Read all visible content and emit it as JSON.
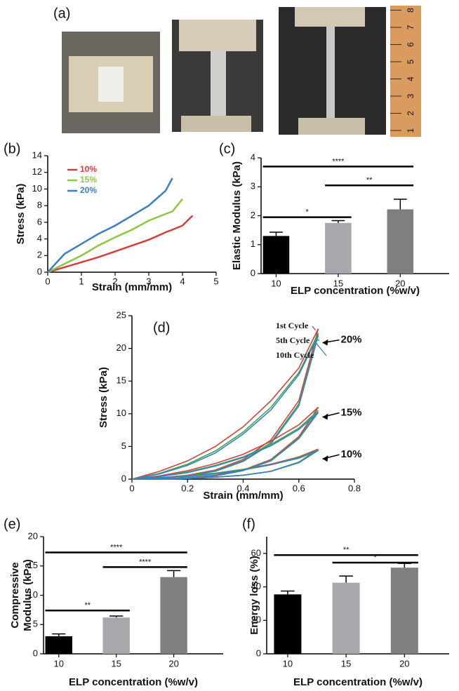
{
  "panel_a": {
    "label": "(a)",
    "ruler_labels": [
      "1",
      "2",
      "3",
      "4",
      "5",
      "6",
      "7",
      "8"
    ]
  },
  "chart_data": [
    {
      "type": "line",
      "panel_label": "(b)",
      "x_label": "Strain (mm/mm)",
      "y_label": "Stress (kPa)",
      "x": [
        0,
        0.5,
        1,
        1.5,
        2,
        2.5,
        3,
        3.5,
        3.7,
        4,
        4.3
      ],
      "series": [
        {
          "name": "10%",
          "color": "#d33f3a",
          "values": [
            0,
            0.6,
            1.2,
            1.8,
            2.5,
            3.2,
            3.9,
            4.8,
            5.1,
            5.6,
            6.8
          ]
        },
        {
          "name": "15%",
          "color": "#8dc63f",
          "values": [
            0,
            1.0,
            2.0,
            3.2,
            4.2,
            5.1,
            6.2,
            7.0,
            7.3,
            8.8,
            null
          ]
        },
        {
          "name": "20%",
          "color": "#3b7fc0",
          "values": [
            0,
            2.2,
            3.4,
            4.6,
            5.6,
            6.8,
            8.0,
            9.8,
            11.3,
            null,
            null
          ]
        }
      ],
      "xlim": [
        0,
        5
      ],
      "xticks": [
        0,
        1,
        2,
        3,
        4,
        5
      ],
      "ylim": [
        0,
        14
      ],
      "yticks": [
        0,
        2,
        4,
        6,
        8,
        10,
        12,
        14
      ],
      "legend": "upper left"
    },
    {
      "type": "bar",
      "panel_label": "(c)",
      "x_label": "ELP concentration (%w/v)",
      "y_label": [
        "Elastic Modulus (kPa)"
      ],
      "categories": [
        "10",
        "15",
        "20"
      ],
      "values": [
        1.3,
        1.75,
        2.22
      ],
      "errors": [
        0.13,
        0.08,
        0.35
      ],
      "colors": [
        "#000000",
        "#a7a7ac",
        "#7f7f7f"
      ],
      "ylim": [
        0,
        4
      ],
      "yticks": [
        0,
        1,
        2,
        3,
        4
      ],
      "significance": [
        {
          "from": "10",
          "to": "20",
          "y": 3.7,
          "label": "****"
        },
        {
          "from": "15",
          "to": "20",
          "y": 3.05,
          "label": "**"
        },
        {
          "from": "10",
          "to": "15",
          "y": 1.95,
          "label": "*"
        }
      ]
    },
    {
      "type": "loop",
      "panel_label": "(d)",
      "x_label": "Strain (mm/mm)",
      "y_label": "Stress (kPa)",
      "x": [
        0,
        0.1,
        0.2,
        0.3,
        0.4,
        0.5,
        0.6,
        0.67,
        0.6,
        0.5,
        0.4,
        0.3,
        0.2,
        0.1,
        0
      ],
      "cycles": [
        {
          "name": "1st Cycle",
          "color": "#d33f3a"
        },
        {
          "name": "5th Cycle",
          "color": "#3aa84f"
        },
        {
          "name": "10th Cycle",
          "color": "#3b7fc0"
        }
      ],
      "groups": [
        {
          "label": "20%",
          "values": [
            [
              0,
              1.2,
              2.8,
              5,
              8,
              12,
              17,
              23,
              12,
              6,
              3,
              1.4,
              0.6,
              0.2,
              0
            ],
            [
              0,
              0.9,
              2.3,
              4.3,
              7.2,
              11,
              16.3,
              22.3,
              11.5,
              5.6,
              2.8,
              1.3,
              0.5,
              0.2,
              0
            ],
            [
              0,
              0.8,
              2.1,
              4,
              6.9,
              10.6,
              16,
              22,
              11.2,
              5.4,
              2.7,
              1.2,
              0.5,
              0.1,
              0
            ]
          ]
        },
        {
          "label": "15%",
          "values": [
            [
              0,
              0.5,
              1.3,
              2.4,
              3.8,
              5.8,
              8.3,
              11,
              6.5,
              3,
              1.4,
              0.6,
              0.2,
              0,
              0
            ],
            [
              0,
              0.4,
              1.1,
              2.1,
              3.4,
              5.3,
              7.8,
              10.5,
              6.3,
              2.9,
              1.3,
              0.5,
              0.2,
              0,
              0
            ],
            [
              0,
              0.4,
              1,
              2,
              3.3,
              5.1,
              7.6,
              10.2,
              6.2,
              2.8,
              1.3,
              0.5,
              0.2,
              0,
              0
            ]
          ]
        },
        {
          "label": "10%",
          "values": [
            [
              0,
              0.2,
              0.5,
              0.9,
              1.5,
              2.3,
              3.4,
              4.6,
              2.6,
              1.2,
              0.6,
              0.3,
              0.1,
              0,
              0
            ],
            [
              0,
              0.2,
              0.5,
              0.9,
              1.5,
              2.2,
              3.3,
              4.5,
              2.6,
              1.2,
              0.6,
              0.3,
              0.1,
              0,
              0
            ],
            [
              0,
              0.2,
              0.4,
              0.8,
              1.4,
              2.2,
              3.2,
              4.4,
              2.5,
              1.2,
              0.6,
              0.3,
              0.1,
              0,
              0
            ]
          ]
        }
      ],
      "xlim": [
        0,
        0.8
      ],
      "xticks": [
        0,
        0.2,
        0.4,
        0.6,
        0.8
      ],
      "ylim": [
        0,
        25
      ],
      "yticks": [
        0,
        5,
        10,
        15,
        20,
        25
      ]
    },
    {
      "type": "bar",
      "panel_label": "(e)",
      "x_label": "ELP concentration (%w/v)",
      "y_label": [
        "Compressive",
        "Modulus (kPa)"
      ],
      "categories": [
        "10",
        "15",
        "20"
      ],
      "values": [
        3.0,
        6.2,
        13.1
      ],
      "errors": [
        0.4,
        0.25,
        1.1
      ],
      "colors": [
        "#000000",
        "#a7a7ac",
        "#7f7f7f"
      ],
      "ylim": [
        0,
        20
      ],
      "yticks": [
        0,
        5,
        10,
        15,
        20
      ],
      "significance": [
        {
          "from": "10",
          "to": "20",
          "y": 17.3,
          "label": "****"
        },
        {
          "from": "15",
          "to": "20",
          "y": 14.8,
          "label": "****"
        },
        {
          "from": "10",
          "to": "15",
          "y": 7.4,
          "label": "**"
        }
      ]
    },
    {
      "type": "bar",
      "panel_label": "(f)",
      "x_label": "ELP concentration (%w/v)",
      "y_label": [
        "Energy loss (%)"
      ],
      "categories": [
        "10",
        "15",
        "20"
      ],
      "values": [
        35.5,
        42.5,
        51.5
      ],
      "errors": [
        2,
        4,
        2.5
      ],
      "colors": [
        "#000000",
        "#a7a7ac",
        "#7f7f7f"
      ],
      "ylim": [
        0,
        70
      ],
      "yticks": [
        0,
        20,
        40,
        60
      ],
      "significance": [
        {
          "from": "10",
          "to": "20",
          "y": 59,
          "label": "**"
        },
        {
          "from": "15",
          "to": "20",
          "y": 54.5,
          "label": "*"
        }
      ]
    }
  ]
}
